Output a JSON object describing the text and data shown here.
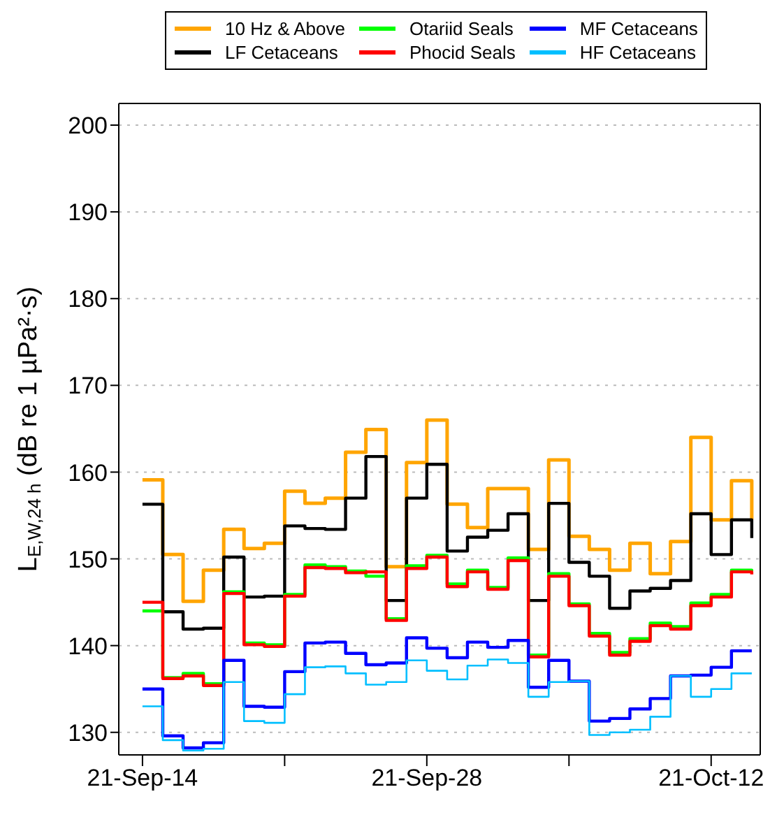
{
  "chart_data": {
    "type": "step",
    "ylabel": "L$_{E,W,24 h}$ (dB re 1 µPa²·s)",
    "x": [
      "--09-14",
      "--09-15",
      "--09-16",
      "--09-17",
      "--09-18",
      "--09-19",
      "--09-20",
      "--09-21",
      "--09-22",
      "--09-23",
      "--09-24",
      "--09-25",
      "--09-26",
      "--09-27",
      "--09-28",
      "--09-29",
      "--09-30",
      "--10-01",
      "--10-02",
      "--10-03",
      "--10-04",
      "--10-05",
      "--10-06",
      "--10-07",
      "--10-08",
      "--10-09",
      "--10-10",
      "--10-11",
      "--10-12",
      "--10-13",
      "--10-14"
    ],
    "series": [
      {
        "name": "10 Hz & Above",
        "color": "#ffa500",
        "values": [
          159.1,
          150.5,
          145.1,
          148.7,
          153.4,
          151.2,
          151.8,
          157.8,
          156.4,
          157.0,
          162.3,
          164.9,
          149.1,
          161.1,
          166.0,
          156.3,
          153.6,
          158.1,
          158.1,
          151.1,
          161.4,
          152.6,
          151.1,
          148.7,
          151.8,
          148.3,
          152.0,
          164.0,
          154.5,
          159.0,
          154.5
        ]
      },
      {
        "name": "LF Cetaceans",
        "color": "#000000",
        "values": [
          156.3,
          143.9,
          141.9,
          142.0,
          150.2,
          145.6,
          145.7,
          153.8,
          153.5,
          153.4,
          157.0,
          161.8,
          145.2,
          157.0,
          160.9,
          150.9,
          152.5,
          153.3,
          155.2,
          145.2,
          156.4,
          149.6,
          148.0,
          144.3,
          146.3,
          146.6,
          147.5,
          155.2,
          150.5,
          154.5,
          152.4
        ]
      },
      {
        "name": "Otariid Seals",
        "color": "#00ff00",
        "values": [
          144.0,
          136.3,
          136.8,
          135.6,
          146.2,
          140.3,
          140.1,
          145.9,
          149.3,
          149.1,
          148.6,
          148.0,
          143.1,
          149.2,
          150.4,
          147.1,
          148.7,
          146.7,
          150.1,
          138.9,
          148.3,
          144.8,
          141.4,
          139.2,
          140.8,
          142.6,
          142.2,
          144.9,
          145.9,
          148.7,
          148.6
        ]
      },
      {
        "name": "Phocid Seals",
        "color": "#ff0000",
        "values": [
          145.0,
          136.2,
          136.5,
          135.4,
          146.0,
          140.1,
          139.9,
          145.7,
          149.0,
          148.9,
          148.4,
          148.5,
          142.9,
          148.9,
          150.2,
          146.8,
          148.5,
          146.5,
          149.8,
          138.7,
          148.0,
          144.6,
          141.1,
          138.9,
          140.5,
          142.3,
          141.9,
          144.6,
          145.6,
          148.5,
          148.2
        ]
      },
      {
        "name": "MF Cetaceans",
        "color": "#0000ff",
        "values": [
          135.0,
          129.6,
          128.2,
          128.8,
          138.3,
          133.0,
          132.9,
          137.0,
          140.3,
          140.4,
          139.1,
          137.8,
          138.0,
          140.9,
          139.7,
          138.6,
          140.4,
          139.8,
          140.6,
          135.2,
          138.3,
          135.9,
          131.3,
          131.6,
          132.7,
          133.9,
          136.5,
          136.6,
          137.5,
          139.4,
          139.4
        ]
      },
      {
        "name": "HF Cetaceans",
        "color": "#00bfff",
        "values": [
          133.0,
          129.1,
          127.9,
          128.1,
          135.8,
          131.3,
          131.1,
          134.4,
          137.5,
          137.6,
          136.8,
          135.5,
          135.8,
          138.3,
          137.1,
          136.1,
          137.7,
          138.4,
          138.0,
          134.1,
          135.8,
          135.9,
          129.7,
          130.0,
          130.3,
          131.8,
          136.5,
          134.1,
          135.0,
          136.8,
          136.8
        ]
      }
    ],
    "xlim": [
      "--09-12T20:00",
      "--10-14T10:00"
    ],
    "xticks": [
      {
        "value": "--09-14",
        "label": "21-Sep-14"
      },
      {
        "value": "--09-21",
        "label": null
      },
      {
        "value": "--09-28",
        "label": "21-Sep-28"
      },
      {
        "value": "--10-05",
        "label": null
      },
      {
        "value": "--10-12",
        "label": "21-Oct-12"
      }
    ],
    "ylim": [
      127.4,
      202.5
    ],
    "yticks": [
      130,
      140,
      150,
      160,
      170,
      180,
      190,
      200
    ],
    "grid": "y",
    "legend": "top",
    "line_style": "solid",
    "marker": "none"
  }
}
